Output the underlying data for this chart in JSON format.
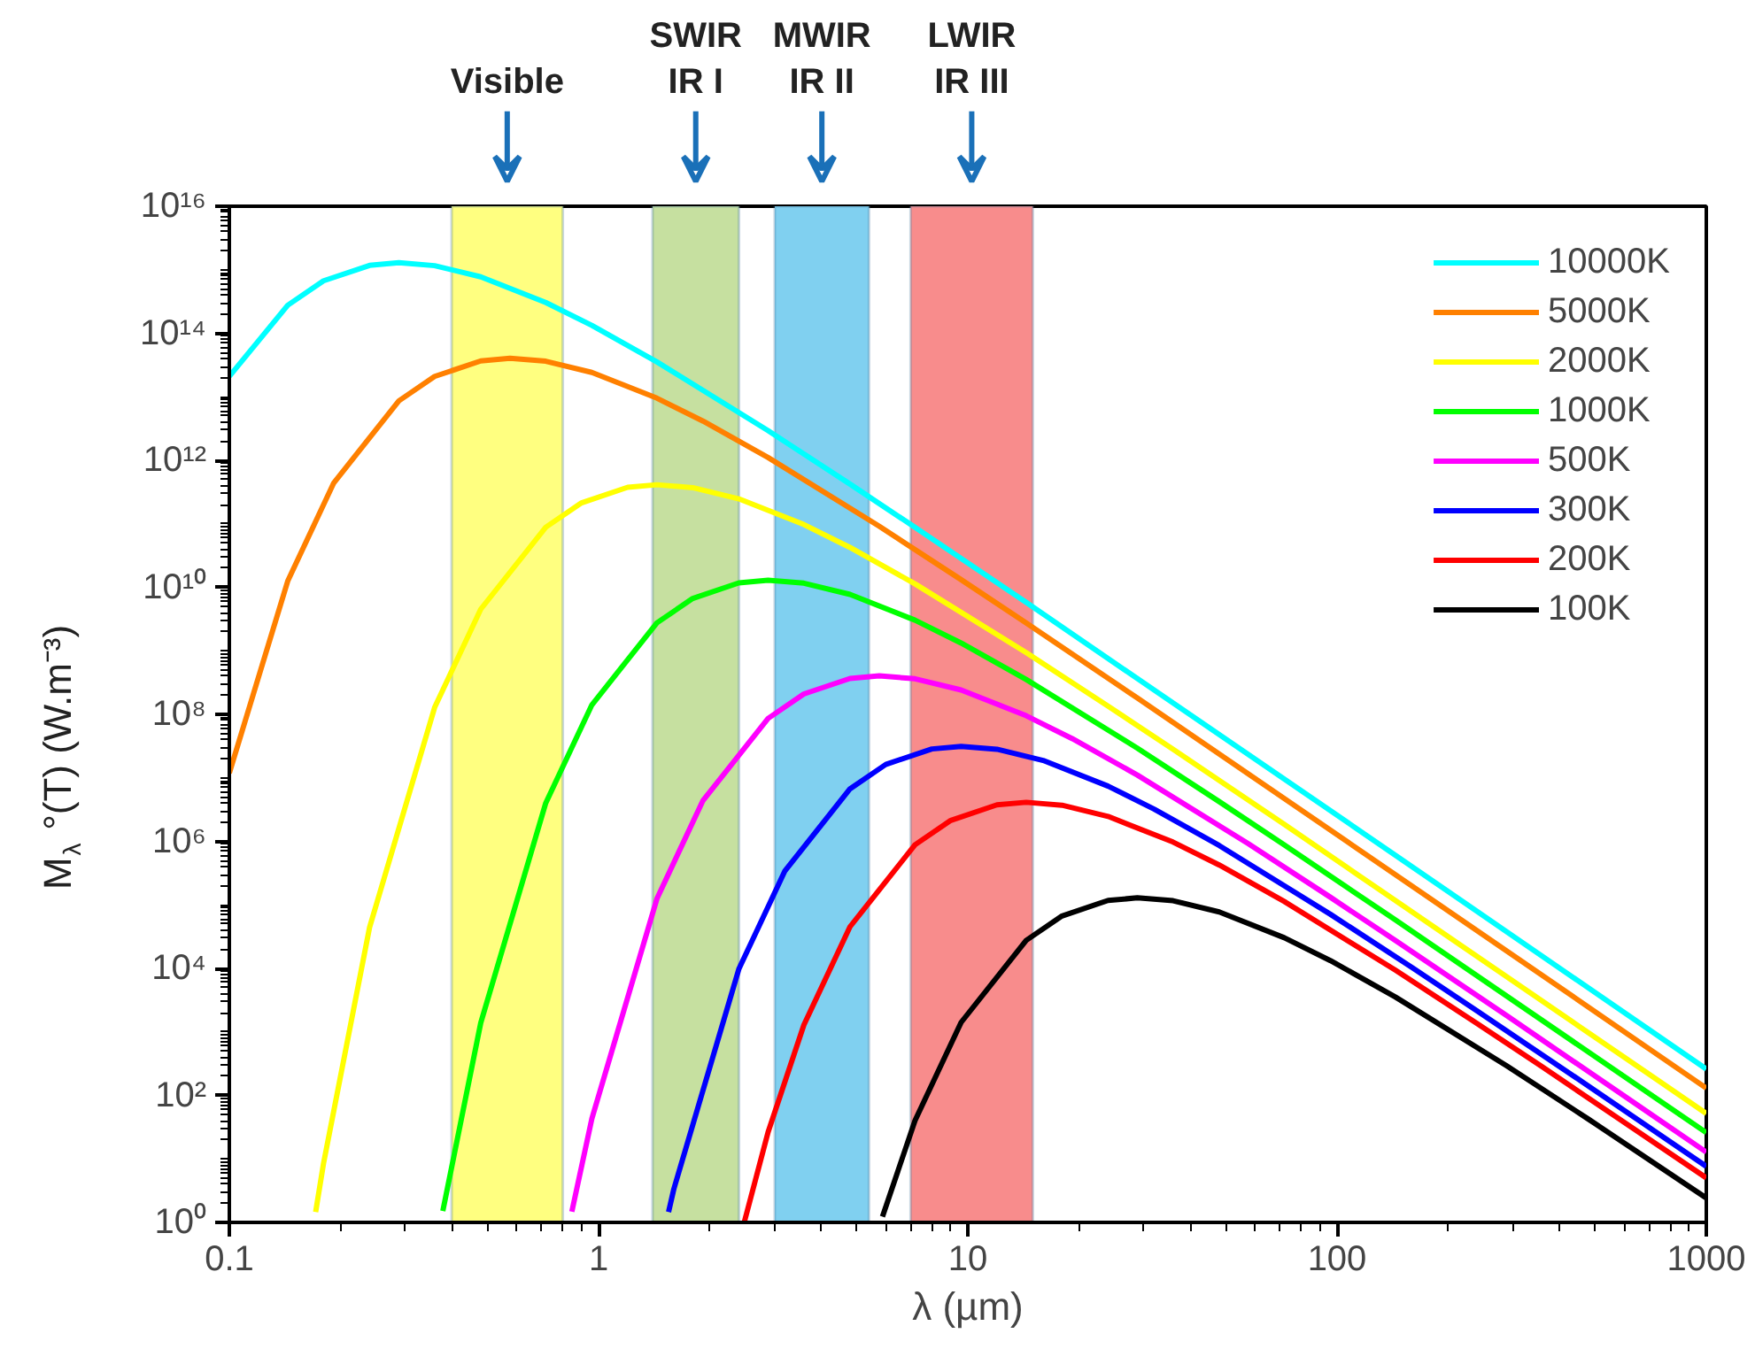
{
  "chart_data": {
    "type": "line",
    "xlabel": "λ (µm)",
    "ylabel": "M$_{λ}$°(T) (W.m⁻³)",
    "log": "xy",
    "grid": false,
    "legend": "top right",
    "line_style": "solid",
    "marker": "none",
    "xlim": [
      0.1,
      1000
    ],
    "xticks": [
      0.1,
      1,
      10,
      100,
      1000
    ],
    "ylim": [
      1,
      1e+16
    ],
    "yticks": [
      {
        "value": 1,
        "label": "10⁰"
      },
      {
        "value": 100,
        "label": "10²"
      },
      {
        "value": 10000,
        "label": "10⁴"
      },
      {
        "value": 1000000.0,
        "label": "10⁶"
      },
      {
        "value": 100000000.0,
        "label": "10⁸"
      },
      {
        "value": 10000000000.0,
        "label": "10¹⁰"
      },
      {
        "value": 1000000000000.0,
        "label": "10¹²"
      },
      {
        "value": 100000000000000.0,
        "label": "10¹⁴"
      },
      {
        "value": 1e+16,
        "label": "10¹⁶"
      }
    ],
    "bands": [
      {
        "axis": "x",
        "from": 0.4,
        "to": 0.8,
        "label": "Visible",
        "color": "#ffff80"
      },
      {
        "axis": "x",
        "from": 1.4,
        "to": 2.4,
        "label": "SWIR\nIR I",
        "color": "#c6e0a0"
      },
      {
        "axis": "x",
        "from": 3,
        "to": 5.4,
        "label": "MWIR\nIR II",
        "color": "#80d0f0"
      },
      {
        "axis": "x",
        "from": 7,
        "to": 15,
        "label": "LWIR\nIR III",
        "color": "#f88c8c"
      }
    ],
    "series": [
      {
        "name": "10000K",
        "color": "#00ffff",
        "x": [
          0.1,
          0.1439,
          0.1799,
          0.2398,
          0.2878,
          0.3597,
          0.4796,
          0.7194,
          0.9592,
          1.439,
          2.878,
          4.796,
          7.194,
          14.39,
          143.9,
          1000
        ],
        "values": [
          21000000000000.0,
          276000000000000.0,
          669000000000000.0,
          1170000000000000.0,
          1290000000000000.0,
          1160000000000000.0,
          774000000000000.0,
          305000000000000.0,
          133000000000000.0,
          35400000000000.0,
          2930000000000.0,
          422000000000.0,
          87900000000.0,
          5780000000.0,
          605000.0,
          260
        ]
      },
      {
        "name": "5000K",
        "color": "#ff8000",
        "x": [
          0.1,
          0.1439,
          0.1918,
          0.2878,
          0.3597,
          0.4796,
          0.5755,
          0.7194,
          0.9592,
          1.439,
          1.918,
          2.878,
          5.755,
          9.592,
          14.39,
          28.78,
          287.8,
          1000
        ],
        "values": [
          11900000.0,
          12500000000.0,
          441000000000.0,
          8620000000000.0,
          20900000000000.0,
          36700000000000.0,
          40300000000000.0,
          36300000000000.0,
          24200000000000.0,
          9510000000000.0,
          4140000000000.0,
          1105000000000.0,
          91500000000.0,
          13190000000.0,
          2740000000.0,
          181000000.0,
          18900.0,
          130
        ]
      },
      {
        "name": "2000K",
        "color": "#ffff00",
        "x": [
          0.1713,
          0.1799,
          0.2398,
          0.3597,
          0.4796,
          0.7194,
          0.8993,
          1.199,
          1.439,
          1.799,
          2.398,
          3.597,
          4.796,
          7.194,
          14.39,
          23.98,
          35.97,
          71.94,
          719.4,
          1000
        ],
        "values": [
          1.46,
          8.46,
          44200.0,
          128000000.0,
          4520000000.0,
          88300000000.0,
          214000000000.0,
          376000000000.0,
          412000000000.0,
          371000000000.0,
          247000000000.0,
          97400000000.0,
          42400000000.0,
          11310000000.0,
          936000000.0,
          135000000.0,
          28100000.0,
          1850000.0,
          193,
          51.9
        ]
      },
      {
        "name": "1000K",
        "color": "#00ff00",
        "x": [
          0.3786,
          0.4796,
          0.7194,
          0.9592,
          1.439,
          1.799,
          2.398,
          2.878,
          3.597,
          4.796,
          7.194,
          9.592,
          14.39,
          28.78,
          47.96,
          71.94,
          143.9,
          1000
        ],
        "values": [
          1.51,
          1380,
          4010000.0,
          141000000.0,
          2760000000.0,
          6680000000.0,
          11740000000.0,
          12880000000.0,
          11610000000.0,
          7740000000.0,
          3040000000.0,
          1325000000.0,
          354000000.0,
          29300000.0,
          4220000.0,
          878000.0,
          57800.0,
          25.9
        ]
      },
      {
        "name": "500K",
        "color": "#ff00ff",
        "x": [
          0.8464,
          0.9592,
          1.439,
          1.918,
          2.878,
          3.597,
          4.796,
          5.755,
          7.194,
          9.592,
          14.39,
          19.18,
          28.78,
          57.55,
          95.92,
          143.9,
          287.8,
          1000
        ],
        "values": [
          1.48,
          43.2,
          125000.0,
          4410000.0,
          86200000.0,
          209000000.0,
          367000000.0,
          403000000.0,
          363000000.0,
          242000000.0,
          95100000.0,
          41400000.0,
          11050000.0,
          915000.0,
          131900.0,
          27400.0,
          1806,
          12.8
        ]
      },
      {
        "name": "300K",
        "color": "#0000ff",
        "x": [
          1.547,
          1.599,
          2.398,
          3.197,
          4.796,
          5.995,
          7.993,
          9.592,
          11.99,
          15.99,
          23.98,
          31.97,
          47.96,
          95.92,
          159.9,
          239.8,
          479.6,
          1000
        ],
        "values": [
          1.46,
          3.36,
          9740,
          343000.0,
          6710000.0,
          16250000.0,
          28500000.0,
          31300000.0,
          28200000.0,
          18800000.0,
          7400000.0,
          3220000.0,
          860000.0,
          71100.0,
          10260.0,
          2134,
          140,
          7.63
        ]
      },
      {
        "name": "200K",
        "color": "#ff0000",
        "x": [
          2.481,
          2.878,
          3.597,
          4.796,
          7.194,
          8.993,
          11.99,
          14.39,
          17.99,
          23.98,
          35.97,
          47.96,
          71.94,
          143.9,
          239.8,
          359.7,
          1000
        ],
        "values": [
          1.01,
          26.4,
          1282,
          45200.0,
          883000.0,
          2140000.0,
          3760000.0,
          4120000.0,
          3710000.0,
          2470000.0,
          974000.0,
          424000.0,
          113100.0,
          9360,
          1350,
          281,
          5.02
        ]
      },
      {
        "name": "100K",
        "color": "#000000",
        "x": [
          5.873,
          7.194,
          9.592,
          14.39,
          17.99,
          23.98,
          28.78,
          35.97,
          47.96,
          71.94,
          95.92,
          143.9,
          287.8,
          479.6,
          1000
        ],
        "values": [
          1.23,
          40.1,
          1412,
          27600.0,
          66800.0,
          117400.0,
          128800.0,
          116100.0,
          77400.0,
          30400.0,
          13250.0,
          3537,
          293,
          42.2,
          2.42
        ]
      }
    ]
  }
}
